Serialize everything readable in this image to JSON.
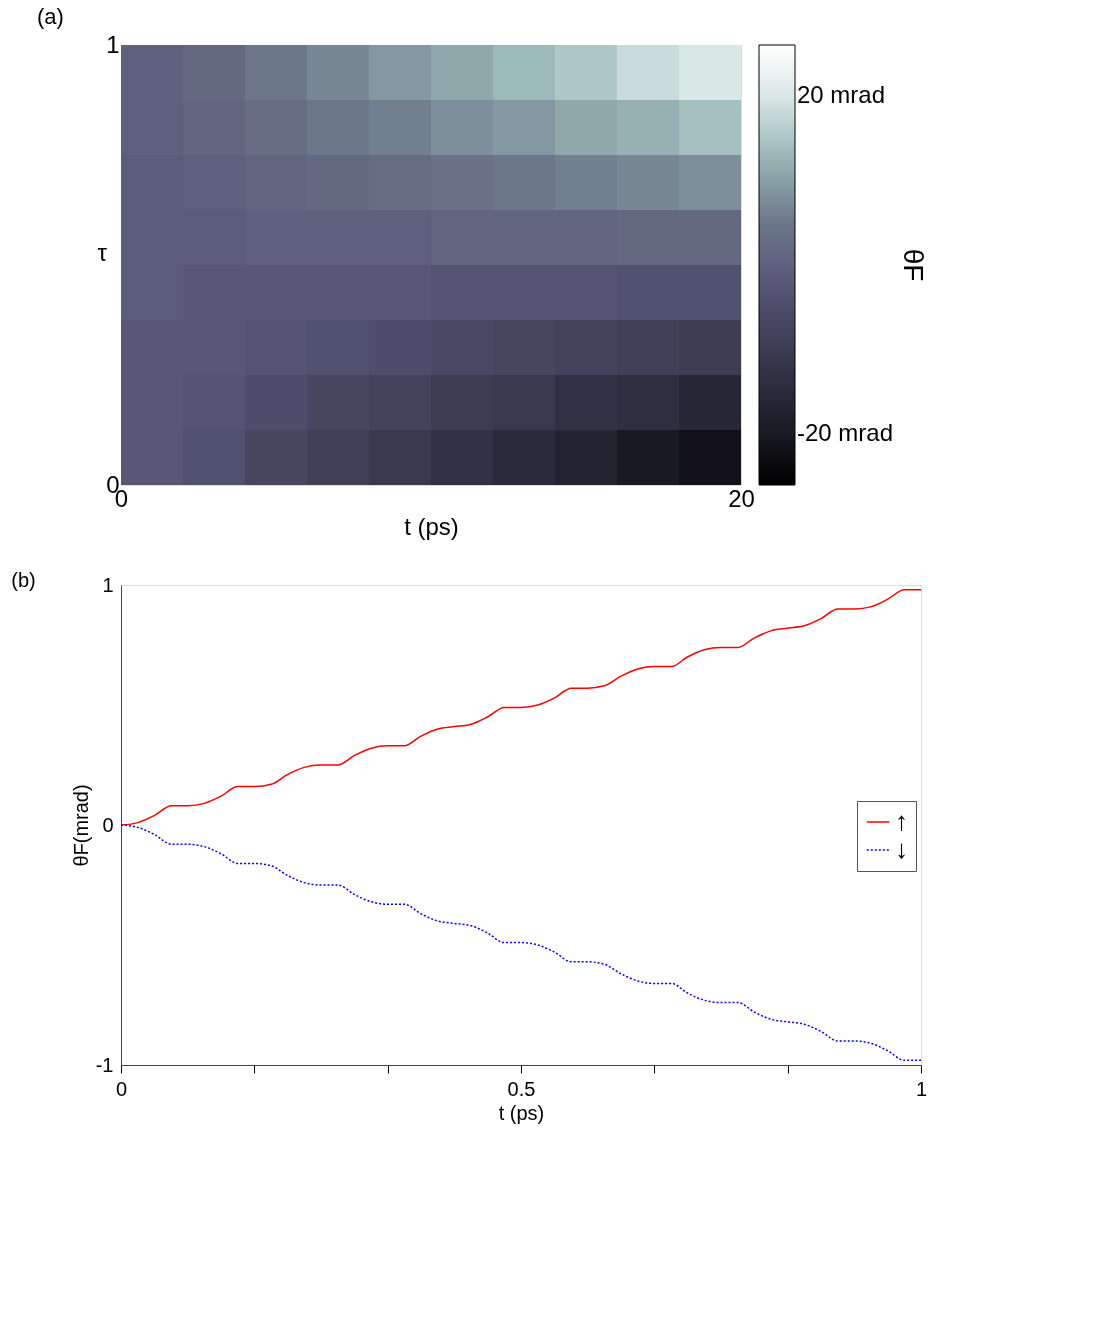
{
  "chart_data": [
    {
      "type": "heatmap",
      "title": "(a)",
      "xlabel": "t (ps)",
      "ylabel": "τ",
      "clabel": "θF",
      "x": [
        1,
        3,
        5,
        7,
        9,
        11,
        13,
        15,
        17,
        19
      ],
      "xlim": [
        0,
        20
      ],
      "xticks": [
        0,
        20
      ],
      "ylim": [
        0,
        1
      ],
      "yticks": [
        0,
        1
      ],
      "clim": [
        -26,
        26
      ],
      "cticks": [
        {
          "value": 20,
          "label": "20 mrad"
        },
        {
          "value": -20,
          "label": "-20 mrad"
        }
      ],
      "cells": [
        [
          0,
          2,
          5,
          7,
          9,
          11,
          13,
          15,
          18,
          20
        ],
        [
          0,
          1,
          3,
          5,
          6,
          8,
          9,
          11,
          12,
          14
        ],
        [
          -1,
          0,
          1,
          2,
          3,
          4,
          5,
          6,
          7,
          8
        ],
        [
          -1,
          -1,
          0,
          0,
          0,
          1,
          1,
          1,
          2,
          2
        ],
        [
          -1,
          -2,
          -2,
          -2,
          -2,
          -3,
          -3,
          -3,
          -4,
          -4
        ],
        [
          -2,
          -2,
          -3,
          -4,
          -5,
          -6,
          -7,
          -8,
          -9,
          -10
        ],
        [
          -2,
          -3,
          -5,
          -7,
          -8,
          -10,
          -11,
          -13,
          -14,
          -16
        ],
        [
          -2,
          -4,
          -7,
          -9,
          -11,
          -13,
          -15,
          -17,
          -20,
          -22
        ]
      ]
    },
    {
      "type": "line",
      "title": "(b)",
      "xlabel": "t (ps)",
      "ylabel": "θF(mrad)",
      "xlim": [
        0,
        1
      ],
      "ylim": [
        -1,
        1
      ],
      "xticks": [
        0,
        {
          "value": 0.1667,
          "label": null
        },
        {
          "value": 0.3333,
          "label": null
        },
        0.5,
        {
          "value": 0.6667,
          "label": null
        },
        {
          "value": 0.8333,
          "label": null
        },
        1
      ],
      "yticks": [
        -1,
        0,
        1
      ],
      "grid": false,
      "legend": "right",
      "marker": "none",
      "x": [
        0,
        0.021,
        0.042,
        0.063,
        0.083,
        0.104,
        0.125,
        0.146,
        0.167,
        0.188,
        0.208,
        0.229,
        0.25,
        0.271,
        0.292,
        0.313,
        0.333,
        0.354,
        0.375,
        0.396,
        0.417,
        0.438,
        0.458,
        0.479,
        0.5,
        0.521,
        0.542,
        0.563,
        0.583,
        0.604,
        0.625,
        0.646,
        0.667,
        0.688,
        0.708,
        0.729,
        0.75,
        0.771,
        0.792,
        0.813,
        0.833,
        0.854,
        0.875,
        0.896,
        0.917,
        0.938,
        0.958,
        0.979,
        1
      ],
      "series": [
        {
          "name": "↑",
          "color": "#ff0000",
          "line_style": "solid",
          "values": [
            0,
            0.01,
            0.04,
            0.08,
            0.08,
            0.09,
            0.12,
            0.16,
            0.16,
            0.17,
            0.21,
            0.24,
            0.25,
            0.25,
            0.29,
            0.32,
            0.33,
            0.33,
            0.37,
            0.4,
            0.41,
            0.42,
            0.45,
            0.49,
            0.49,
            0.5,
            0.53,
            0.57,
            0.57,
            0.58,
            0.62,
            0.65,
            0.66,
            0.66,
            0.7,
            0.73,
            0.74,
            0.74,
            0.78,
            0.81,
            0.82,
            0.83,
            0.86,
            0.9,
            0.9,
            0.91,
            0.94,
            0.98,
            0.98
          ]
        },
        {
          "name": "↓",
          "color": "#0000ff",
          "line_style": "dotted",
          "values": [
            0,
            -0.01,
            -0.04,
            -0.08,
            -0.08,
            -0.09,
            -0.12,
            -0.16,
            -0.16,
            -0.17,
            -0.21,
            -0.24,
            -0.25,
            -0.25,
            -0.29,
            -0.32,
            -0.33,
            -0.33,
            -0.37,
            -0.4,
            -0.41,
            -0.42,
            -0.45,
            -0.49,
            -0.49,
            -0.5,
            -0.53,
            -0.57,
            -0.57,
            -0.58,
            -0.62,
            -0.65,
            -0.66,
            -0.66,
            -0.7,
            -0.73,
            -0.74,
            -0.74,
            -0.78,
            -0.81,
            -0.82,
            -0.83,
            -0.86,
            -0.9,
            -0.9,
            -0.91,
            -0.94,
            -0.98,
            -0.98
          ]
        }
      ]
    }
  ]
}
